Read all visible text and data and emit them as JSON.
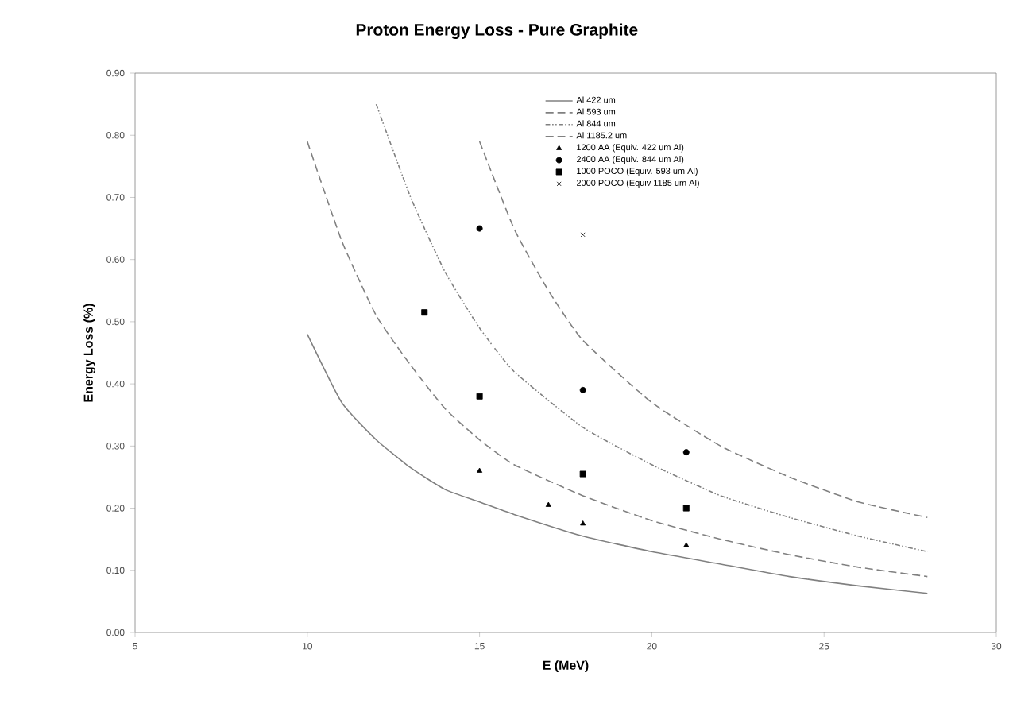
{
  "chart_data": {
    "type": "line",
    "title": "Proton Energy Loss - Pure Graphite",
    "xlabel": "E (MeV)",
    "ylabel": "Energy Loss (%)",
    "xlim": [
      5,
      30
    ],
    "xticks": [
      5,
      10,
      15,
      20,
      25,
      30
    ],
    "ylim": [
      0,
      0.9
    ],
    "yticks": [
      {
        "value": 0,
        "label": "0.00"
      },
      {
        "value": 0.1,
        "label": "0.10"
      },
      {
        "value": 0.2,
        "label": "0.20"
      },
      {
        "value": 0.3,
        "label": "0.30"
      },
      {
        "value": 0.4,
        "label": "0.40"
      },
      {
        "value": 0.5,
        "label": "0.50"
      },
      {
        "value": 0.6,
        "label": "0.60"
      },
      {
        "value": 0.7,
        "label": "0.70"
      },
      {
        "value": 0.8,
        "label": "0.80"
      },
      {
        "value": 0.9,
        "label": "0.90"
      }
    ],
    "grid": false,
    "legend": "top right",
    "series": [
      {
        "name": "Al 422 um",
        "color": "#808080",
        "line_style": "solid",
        "marker": "none",
        "x": [
          10,
          11,
          12,
          13,
          14,
          15,
          16,
          18,
          20,
          22,
          24,
          26,
          28
        ],
        "values": [
          0.48,
          0.37,
          0.31,
          0.265,
          0.23,
          0.21,
          0.19,
          0.155,
          0.13,
          0.11,
          0.09,
          0.075,
          0.063
        ]
      },
      {
        "name": "Al 593 um",
        "color": "#808080",
        "line_style": "dashed",
        "marker": "none",
        "x": [
          10,
          11,
          12,
          13,
          14,
          15,
          16,
          18,
          20,
          22,
          24,
          26,
          28
        ],
        "values": [
          0.79,
          0.63,
          0.51,
          0.43,
          0.36,
          0.31,
          0.27,
          0.22,
          0.18,
          0.15,
          0.125,
          0.105,
          0.09
        ]
      },
      {
        "name": "Al 844 um",
        "color": "#808080",
        "line_style": "dotted",
        "marker": "none",
        "x": [
          12,
          13,
          14,
          15,
          16,
          18,
          20,
          22,
          24,
          26,
          28
        ],
        "values": [
          0.85,
          0.7,
          0.58,
          0.49,
          0.42,
          0.33,
          0.27,
          0.22,
          0.185,
          0.155,
          0.13
        ]
      },
      {
        "name": "Al 1185.2 um",
        "color": "#808080",
        "line_style": "dashed",
        "marker": "none",
        "x": [
          15,
          16,
          17,
          18,
          20,
          22,
          24,
          26,
          28
        ],
        "values": [
          0.79,
          0.65,
          0.55,
          0.47,
          0.37,
          0.3,
          0.25,
          0.21,
          0.185
        ]
      },
      {
        "name": "1200 AA (Equiv. 422 um Al)",
        "type": "scatter",
        "color": "#000000",
        "marker": "triangle",
        "x": [
          15,
          17,
          18,
          21
        ],
        "values": [
          0.26,
          0.205,
          0.175,
          0.14
        ]
      },
      {
        "name": "2400 AA (Equiv. 844 um Al)",
        "type": "scatter",
        "color": "#000000",
        "marker": "circle",
        "x": [
          15,
          18,
          21
        ],
        "values": [
          0.65,
          0.39,
          0.29
        ]
      },
      {
        "name": "1000 POCO (Equiv. 593 um Al)",
        "type": "scatter",
        "color": "#000000",
        "marker": "square",
        "x": [
          13.4,
          15,
          18,
          21
        ],
        "values": [
          0.515,
          0.38,
          0.255,
          0.2
        ]
      },
      {
        "name": "2000 POCO (Equiv 1185 um Al)",
        "type": "scatter",
        "color": "#000000",
        "marker": "cross",
        "x": [
          18
        ],
        "values": [
          0.64
        ]
      }
    ]
  }
}
